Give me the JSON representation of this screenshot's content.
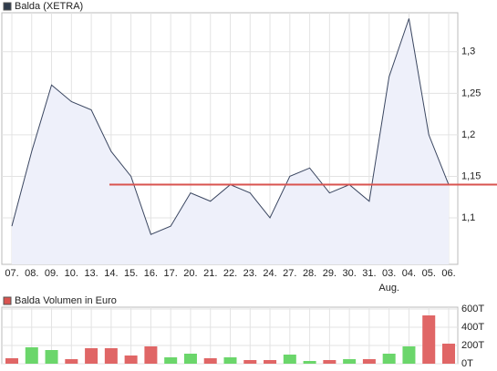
{
  "chart_data": [
    {
      "type": "line",
      "legend": "Balda (XETRA)",
      "legend_color": "#2f3b4c",
      "categories": [
        "07.",
        "08.",
        "09.",
        "10.",
        "13.",
        "14.",
        "15.",
        "16.",
        "17.",
        "20.",
        "21.",
        "22.",
        "23.",
        "24.",
        "27.",
        "28.",
        "29.",
        "30.",
        "31.",
        "03.",
        "04.",
        "05.",
        "06."
      ],
      "month_labels": [
        null,
        null,
        null,
        null,
        null,
        null,
        null,
        null,
        null,
        null,
        null,
        null,
        null,
        null,
        null,
        null,
        null,
        null,
        null,
        "Aug.",
        null,
        null,
        null
      ],
      "values": [
        1.09,
        1.18,
        1.26,
        1.24,
        1.23,
        1.18,
        1.15,
        1.08,
        1.09,
        1.13,
        1.12,
        1.14,
        1.13,
        1.1,
        1.15,
        1.16,
        1.13,
        1.14,
        1.12,
        1.27,
        1.34,
        1.2,
        1.14
      ],
      "color": "#3a4660",
      "fill": "#eef0fa",
      "reference_line": {
        "value": 1.14,
        "color": "#d9534f"
      },
      "ylim": [
        1.044,
        1.347
      ],
      "yticks": [
        {
          "value": 1.1,
          "label": "1,1"
        },
        {
          "value": 1.15,
          "label": "1,15"
        },
        {
          "value": 1.2,
          "label": "1,2"
        },
        {
          "value": 1.25,
          "label": "1,25"
        },
        {
          "value": 1.3,
          "label": "1,3"
        }
      ],
      "grid": true
    },
    {
      "type": "bar",
      "legend": "Balda Volumen in Euro",
      "legend_color": "#d9534f",
      "values": [
        60,
        180,
        150,
        50,
        170,
        170,
        90,
        190,
        70,
        110,
        60,
        70,
        40,
        40,
        100,
        30,
        40,
        50,
        50,
        110,
        190,
        530,
        220
      ],
      "colors": [
        "#e06666",
        "#6bd66b",
        "#6bd66b",
        "#e06666",
        "#e06666",
        "#e06666",
        "#e06666",
        "#e06666",
        "#6bd66b",
        "#6bd66b",
        "#e06666",
        "#6bd66b",
        "#e06666",
        "#e06666",
        "#6bd66b",
        "#6bd66b",
        "#e06666",
        "#6bd66b",
        "#e06666",
        "#6bd66b",
        "#6bd66b",
        "#e06666",
        "#e06666"
      ],
      "ylim": [
        0,
        600
      ],
      "yticks": [
        {
          "value": 0,
          "label": "0T"
        },
        {
          "value": 200,
          "label": "200T"
        },
        {
          "value": 400,
          "label": "400T"
        },
        {
          "value": 600,
          "label": "600T"
        }
      ],
      "grid": true
    }
  ]
}
